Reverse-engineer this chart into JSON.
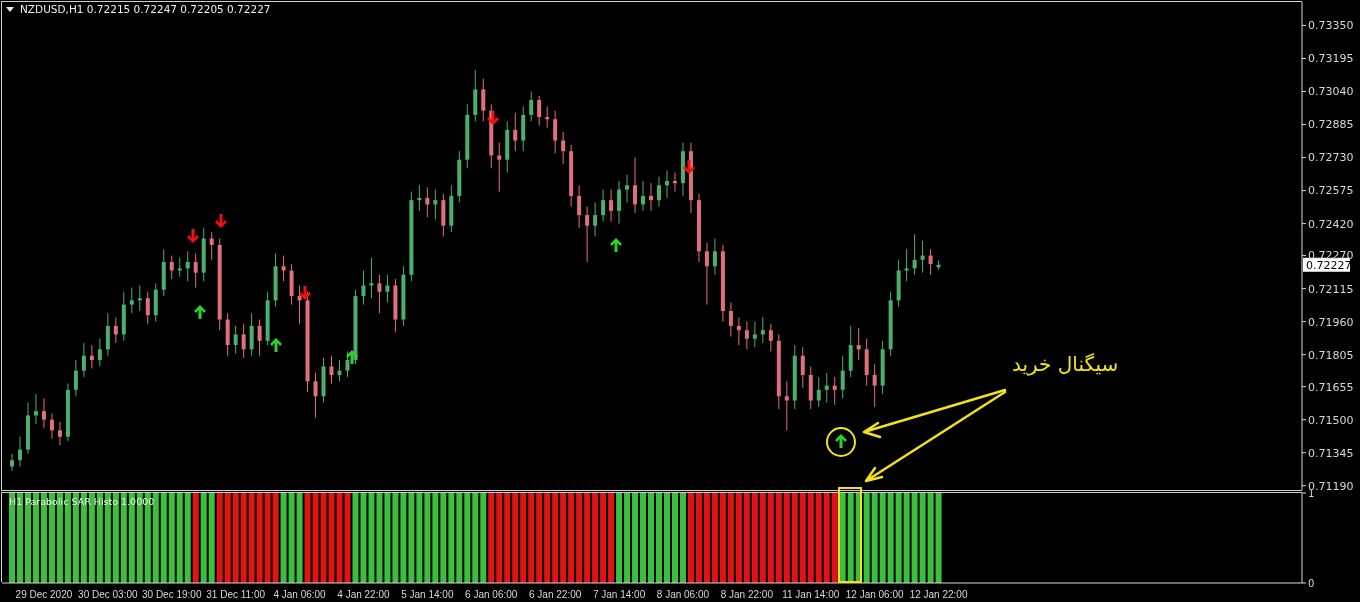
{
  "chart_data": [
    {
      "type": "candlestick",
      "title": "NZDUSD,H1 0.72215 0.72247 0.72205 0.72227",
      "categories": [
        null,
        null,
        null,
        null,
        null,
        null,
        null,
        null,
        null,
        null,
        null,
        null,
        null,
        null,
        null,
        null,
        null,
        null,
        null,
        null,
        null,
        null,
        null,
        null,
        null,
        null,
        null,
        null,
        null,
        null,
        null,
        null,
        null,
        null,
        null,
        null,
        null,
        null,
        null,
        null,
        null,
        null,
        null,
        null,
        null,
        null,
        null,
        null,
        null,
        null,
        null,
        null,
        null,
        null,
        null,
        null,
        null,
        null,
        null,
        null,
        null,
        null,
        null,
        null,
        null,
        null,
        null,
        null,
        null,
        null,
        null,
        null,
        null,
        null,
        null,
        null,
        null,
        null,
        null,
        null,
        null,
        null,
        null,
        null,
        null,
        null,
        null,
        null,
        null,
        null,
        null,
        null,
        null,
        null,
        null,
        null,
        null,
        null,
        null,
        null,
        null,
        null,
        null,
        null,
        null,
        null,
        null,
        null,
        null,
        null,
        null,
        null,
        null,
        null,
        null,
        null,
        null,
        null,
        null,
        null,
        null,
        null,
        null,
        null,
        null,
        null,
        null,
        null,
        null,
        null,
        null,
        null,
        null,
        null,
        null,
        null,
        null,
        null,
        null,
        null,
        null,
        null,
        null,
        null,
        null,
        null,
        null,
        null,
        null,
        null,
        null,
        null,
        null,
        null,
        null,
        null,
        null,
        null,
        null,
        null,
        null,
        null
      ],
      "ohlc": [
        [
          0.7128,
          0.7134,
          0.7126,
          0.7131
        ],
        [
          0.7131,
          0.7142,
          0.7128,
          0.7136
        ],
        [
          0.7136,
          0.7158,
          0.7134,
          0.7152
        ],
        [
          0.7152,
          0.7162,
          0.7148,
          0.7154
        ],
        [
          0.7154,
          0.716,
          0.7146,
          0.715
        ],
        [
          0.715,
          0.7153,
          0.7141,
          0.7145
        ],
        [
          0.7145,
          0.7149,
          0.7138,
          0.7142
        ],
        [
          0.7142,
          0.7167,
          0.714,
          0.7164
        ],
        [
          0.7164,
          0.7178,
          0.7161,
          0.7173
        ],
        [
          0.7173,
          0.7186,
          0.717,
          0.718
        ],
        [
          0.718,
          0.7185,
          0.7174,
          0.7178
        ],
        [
          0.7178,
          0.7188,
          0.7175,
          0.7183
        ],
        [
          0.7183,
          0.72,
          0.718,
          0.7194
        ],
        [
          0.7194,
          0.7198,
          0.7186,
          0.719
        ],
        [
          0.719,
          0.721,
          0.7187,
          0.7204
        ],
        [
          0.7204,
          0.7212,
          0.72,
          0.7206
        ],
        [
          0.7206,
          0.7213,
          0.7201,
          0.7207
        ],
        [
          0.7207,
          0.721,
          0.7195,
          0.7199
        ],
        [
          0.7199,
          0.7214,
          0.7196,
          0.7211
        ],
        [
          0.7211,
          0.723,
          0.7208,
          0.7224
        ],
        [
          0.7224,
          0.7227,
          0.7216,
          0.722
        ],
        [
          0.722,
          0.7226,
          0.7217,
          0.7221
        ],
        [
          0.7221,
          0.7229,
          0.7215,
          0.7224
        ],
        [
          0.7224,
          0.7228,
          0.7212,
          0.7219
        ],
        [
          0.7219,
          0.724,
          0.7215,
          0.7235
        ],
        [
          0.7235,
          0.7238,
          0.7225,
          0.7232
        ],
        [
          0.7232,
          0.7235,
          0.7192,
          0.7197
        ],
        [
          0.7197,
          0.72,
          0.718,
          0.7185
        ],
        [
          0.7185,
          0.7194,
          0.7181,
          0.719
        ],
        [
          0.719,
          0.7195,
          0.7179,
          0.7183
        ],
        [
          0.7183,
          0.72,
          0.718,
          0.7194
        ],
        [
          0.7194,
          0.7197,
          0.718,
          0.7187
        ],
        [
          0.7187,
          0.721,
          0.7185,
          0.7206
        ],
        [
          0.7206,
          0.7228,
          0.7203,
          0.7222
        ],
        [
          0.7222,
          0.7227,
          0.7215,
          0.722
        ],
        [
          0.722,
          0.7223,
          0.7204,
          0.7208
        ],
        [
          0.7208,
          0.7213,
          0.7195,
          0.7206
        ],
        [
          0.7206,
          0.721,
          0.7163,
          0.7168
        ],
        [
          0.7168,
          0.7172,
          0.7151,
          0.7161
        ],
        [
          0.7161,
          0.7179,
          0.7158,
          0.7175
        ],
        [
          0.7175,
          0.718,
          0.7167,
          0.7171
        ],
        [
          0.7171,
          0.7178,
          0.7168,
          0.7173
        ],
        [
          0.7173,
          0.7182,
          0.717,
          0.7178
        ],
        [
          0.7178,
          0.7211,
          0.7176,
          0.7208
        ],
        [
          0.7208,
          0.722,
          0.7204,
          0.7213
        ],
        [
          0.7213,
          0.7226,
          0.7207,
          0.7214
        ],
        [
          0.7214,
          0.7218,
          0.72,
          0.721
        ],
        [
          0.721,
          0.7218,
          0.7205,
          0.7213
        ],
        [
          0.7213,
          0.7216,
          0.7191,
          0.7197
        ],
        [
          0.7197,
          0.7222,
          0.7194,
          0.7218
        ],
        [
          0.7218,
          0.7257,
          0.7215,
          0.7253
        ],
        [
          0.7253,
          0.726,
          0.7248,
          0.7254
        ],
        [
          0.7254,
          0.7259,
          0.7245,
          0.7251
        ],
        [
          0.7251,
          0.7258,
          0.7244,
          0.7253
        ],
        [
          0.7253,
          0.7256,
          0.7236,
          0.7241
        ],
        [
          0.7241,
          0.726,
          0.7238,
          0.7255
        ],
        [
          0.7255,
          0.7276,
          0.7252,
          0.7272
        ],
        [
          0.7272,
          0.7298,
          0.7268,
          0.7293
        ],
        [
          0.7293,
          0.7314,
          0.729,
          0.7305
        ],
        [
          0.7305,
          0.731,
          0.729,
          0.7295
        ],
        [
          0.7295,
          0.7298,
          0.7268,
          0.7274
        ],
        [
          0.7274,
          0.728,
          0.7257,
          0.7272
        ],
        [
          0.7272,
          0.729,
          0.7266,
          0.7286
        ],
        [
          0.7286,
          0.7294,
          0.7276,
          0.7281
        ],
        [
          0.7281,
          0.7297,
          0.7276,
          0.7293
        ],
        [
          0.7293,
          0.7304,
          0.729,
          0.73
        ],
        [
          0.73,
          0.7302,
          0.7288,
          0.7292
        ],
        [
          0.7292,
          0.7297,
          0.7287,
          0.7291
        ],
        [
          0.7291,
          0.7295,
          0.7275,
          0.7281
        ],
        [
          0.7281,
          0.7285,
          0.727,
          0.7276
        ],
        [
          0.7276,
          0.7279,
          0.725,
          0.7255
        ],
        [
          0.7255,
          0.726,
          0.724,
          0.7246
        ],
        [
          0.7246,
          0.725,
          0.7224,
          0.7241
        ],
        [
          0.7241,
          0.7252,
          0.7236,
          0.7246
        ],
        [
          0.7246,
          0.7258,
          0.7243,
          0.7253
        ],
        [
          0.7253,
          0.7258,
          0.7243,
          0.7248
        ],
        [
          0.7248,
          0.7262,
          0.7242,
          0.7258
        ],
        [
          0.7258,
          0.7265,
          0.7252,
          0.726
        ],
        [
          0.726,
          0.7273,
          0.7247,
          0.7251
        ],
        [
          0.7251,
          0.7262,
          0.7248,
          0.7255
        ],
        [
          0.7255,
          0.7261,
          0.7248,
          0.7253
        ],
        [
          0.7253,
          0.7264,
          0.725,
          0.726
        ],
        [
          0.726,
          0.7267,
          0.7254,
          0.7262
        ],
        [
          0.7262,
          0.7266,
          0.7257,
          0.7261
        ],
        [
          0.7261,
          0.728,
          0.7255,
          0.7276
        ],
        [
          0.7276,
          0.728,
          0.7247,
          0.7253
        ],
        [
          0.7253,
          0.7256,
          0.7224,
          0.7229
        ],
        [
          0.7229,
          0.7233,
          0.7204,
          0.7222
        ],
        [
          0.7222,
          0.7235,
          0.7218,
          0.7229
        ],
        [
          0.7229,
          0.7232,
          0.7196,
          0.7201
        ],
        [
          0.7201,
          0.7205,
          0.7189,
          0.7194
        ],
        [
          0.7194,
          0.7198,
          0.7185,
          0.7192
        ],
        [
          0.7192,
          0.7196,
          0.7183,
          0.7188
        ],
        [
          0.7188,
          0.7196,
          0.7184,
          0.719
        ],
        [
          0.719,
          0.7198,
          0.7186,
          0.7192
        ],
        [
          0.7192,
          0.7195,
          0.7182,
          0.7187
        ],
        [
          0.7187,
          0.719,
          0.7155,
          0.7161
        ],
        [
          0.7161,
          0.7168,
          0.7145,
          0.7159
        ],
        [
          0.7159,
          0.7185,
          0.7155,
          0.718
        ],
        [
          0.718,
          0.7184,
          0.7165,
          0.7171
        ],
        [
          0.7171,
          0.7175,
          0.7155,
          0.7159
        ],
        [
          0.7159,
          0.717,
          0.7156,
          0.7164
        ],
        [
          0.7164,
          0.7172,
          0.7158,
          0.7166
        ],
        [
          0.7166,
          0.717,
          0.7157,
          0.7164
        ],
        [
          0.7164,
          0.718,
          0.716,
          0.7173
        ],
        [
          0.7173,
          0.7194,
          0.717,
          0.7185
        ],
        [
          0.7185,
          0.7193,
          0.7178,
          0.7183
        ],
        [
          0.7183,
          0.7188,
          0.7166,
          0.7171
        ],
        [
          0.7171,
          0.7176,
          0.7156,
          0.7166
        ],
        [
          0.7166,
          0.7187,
          0.7162,
          0.7183
        ],
        [
          0.7183,
          0.721,
          0.718,
          0.7206
        ],
        [
          0.7206,
          0.7225,
          0.7203,
          0.722
        ],
        [
          0.722,
          0.723,
          0.7215,
          0.7221
        ],
        [
          0.7221,
          0.7237,
          0.7218,
          0.7225
        ],
        [
          0.7225,
          0.7234,
          0.7219,
          0.7227
        ],
        [
          0.7227,
          0.723,
          0.7218,
          0.7223
        ],
        [
          0.72215,
          0.72247,
          0.72205,
          0.72227
        ],
        null,
        null,
        null,
        null,
        null,
        null,
        null,
        null,
        null,
        null,
        null,
        null,
        null,
        null,
        null,
        null,
        null,
        null,
        null,
        null,
        null,
        null,
        null,
        null,
        null,
        null,
        null,
        null,
        null,
        null,
        null,
        null,
        null,
        null,
        null,
        null,
        null,
        null,
        null,
        null,
        null,
        null,
        null,
        null,
        null
      ],
      "colors": [
        "#4caf6e",
        "#4caf6e",
        "#4caf6e",
        "#4caf6e",
        "#e0707a",
        "#e0707a",
        "#e0707a",
        "#4caf6e",
        "#4caf6e",
        "#4caf6e",
        "#e0707a",
        "#4caf6e",
        "#4caf6e",
        "#e0707a",
        "#4caf6e",
        "#4caf6e",
        "#4caf6e",
        "#e0707a",
        "#4caf6e",
        "#4caf6e",
        "#e0707a",
        "#4caf6e",
        "#4caf6e",
        "#e0707a",
        "#4caf6e",
        "#e0707a",
        "#e0707a",
        "#e0707a",
        "#4caf6e",
        "#e0707a",
        "#4caf6e",
        "#e0707a",
        "#4caf6e",
        "#4caf6e",
        "#e0707a",
        "#e0707a",
        "#e0707a",
        "#e0707a",
        "#e0707a",
        "#4caf6e",
        "#e0707a",
        "#4caf6e",
        "#4caf6e",
        "#4caf6e",
        "#4caf6e",
        "#4caf6e",
        "#e0707a",
        "#4caf6e",
        "#e0707a",
        "#4caf6e",
        "#4caf6e",
        "#4caf6e",
        "#e0707a",
        "#4caf6e",
        "#e0707a",
        "#4caf6e",
        "#4caf6e",
        "#4caf6e",
        "#4caf6e",
        "#e0707a",
        "#e0707a",
        "#e0707a",
        "#4caf6e",
        "#e0707a",
        "#4caf6e",
        "#4caf6e",
        "#e0707a",
        "#e0707a",
        "#e0707a",
        "#e0707a",
        "#e0707a",
        "#e0707a",
        "#e0707a",
        "#4caf6e",
        "#4caf6e",
        "#e0707a",
        "#4caf6e",
        "#4caf6e",
        "#e0707a",
        "#4caf6e",
        "#e0707a",
        "#4caf6e",
        "#4caf6e",
        "#e0707a",
        "#4caf6e",
        "#e0707a",
        "#e0707a",
        "#e0707a",
        "#4caf6e",
        "#e0707a",
        "#e0707a",
        "#e0707a",
        "#e0707a",
        "#4caf6e",
        "#4caf6e",
        "#e0707a",
        "#e0707a",
        "#e0707a",
        "#4caf6e",
        "#e0707a",
        "#e0707a",
        "#4caf6e",
        "#4caf6e",
        "#e0707a",
        "#4caf6e",
        "#4caf6e",
        "#e0707a",
        "#e0707a",
        "#e0707a",
        "#4caf6e",
        "#4caf6e",
        "#4caf6e",
        "#4caf6e",
        "#4caf6e",
        "#4caf6e",
        "#e0707a",
        "#4caf6e",
        null,
        null,
        null,
        null,
        null,
        null,
        null,
        null,
        null,
        null,
        null,
        null,
        null,
        null,
        null,
        null,
        null,
        null,
        null,
        null,
        null,
        null,
        null,
        null,
        null,
        null,
        null,
        null,
        null,
        null,
        null,
        null,
        null,
        null,
        null,
        null,
        null,
        null,
        null,
        null,
        null,
        null,
        null,
        null,
        null
      ],
      "ylim": [
        0.7117,
        0.7346
      ],
      "yticks": [
        {
          "value": 0.7335,
          "label": "0.73350"
        },
        {
          "value": 0.73195,
          "label": "0.73195"
        },
        {
          "value": 0.7304,
          "label": "0.73040"
        },
        {
          "value": 0.72885,
          "label": "0.72885"
        },
        {
          "value": 0.7273,
          "label": "0.72730"
        },
        {
          "value": 0.72575,
          "label": "0.72575"
        },
        {
          "value": 0.7242,
          "label": "0.72420"
        },
        {
          "value": 0.7227,
          "label": "0.72270"
        },
        {
          "value": 0.72115,
          "label": "0.72115"
        },
        {
          "value": 0.7196,
          "label": "0.71960"
        },
        {
          "value": 0.71805,
          "label": "0.71805"
        },
        {
          "value": 0.71655,
          "label": "0.71655"
        },
        {
          "value": 0.715,
          "label": "0.71500"
        },
        {
          "value": 0.71345,
          "label": "0.71345"
        },
        {
          "value": 0.7119,
          "label": "0.71190"
        }
      ],
      "tick_labels": "y",
      "annotations": [
        "سیگنال خرید",
        "0.72227"
      ]
    },
    {
      "type": "bar",
      "title": "H1 Parabolic SAR Histo 1.0000",
      "categories": [
        null,
        null,
        null,
        null,
        "29 Dec 2020",
        null,
        null,
        null,
        null,
        null,
        null,
        null,
        "30 Dec 03:00",
        null,
        null,
        null,
        null,
        null,
        null,
        null,
        "30 Dec 19:00",
        null,
        null,
        null,
        null,
        null,
        null,
        null,
        "31 Dec 11:00",
        null,
        null,
        null,
        null,
        null,
        null,
        null,
        "4 Jan 06:00",
        null,
        null,
        null,
        null,
        null,
        null,
        null,
        "4 Jan 22:00",
        null,
        null,
        null,
        null,
        null,
        null,
        null,
        "5 Jan 14:00",
        null,
        null,
        null,
        null,
        null,
        null,
        null,
        "6 Jan 06:00",
        null,
        null,
        null,
        null,
        null,
        null,
        null,
        "6 Jan 22:00",
        null,
        null,
        null,
        null,
        null,
        null,
        null,
        "7 Jan 14:00",
        null,
        null,
        null,
        null,
        null,
        null,
        null,
        "8 Jan 06:00",
        null,
        null,
        null,
        null,
        null,
        null,
        null,
        "8 Jan 22:00",
        null,
        null,
        null,
        null,
        null,
        null,
        null,
        "11 Jan 14:00",
        null,
        null,
        null,
        null,
        null,
        null,
        null,
        "12 Jan 06:00",
        null,
        null,
        null,
        null,
        null,
        null,
        null,
        "12 Jan 22:00",
        null,
        null,
        null,
        null,
        null,
        null,
        null,
        null,
        null,
        null,
        null,
        null,
        null,
        null,
        null,
        null,
        null,
        null,
        null,
        null,
        null,
        null,
        null,
        null,
        null,
        null,
        null,
        null,
        null,
        null,
        null,
        null,
        null,
        null,
        null,
        null,
        null,
        null,
        null,
        null,
        null,
        null,
        null,
        null,
        null
      ],
      "values": [
        1,
        1,
        1,
        1,
        1,
        1,
        1,
        1,
        1,
        1,
        1,
        1,
        1,
        1,
        1,
        1,
        1,
        1,
        1,
        1,
        1,
        1,
        1,
        1,
        1,
        1,
        1,
        1,
        1,
        1,
        1,
        1,
        1,
        1,
        1,
        1,
        1,
        1,
        1,
        1,
        1,
        1,
        1,
        1,
        1,
        1,
        1,
        1,
        1,
        1,
        1,
        1,
        1,
        1,
        1,
        1,
        1,
        1,
        1,
        1,
        1,
        1,
        1,
        1,
        1,
        1,
        1,
        1,
        1,
        1,
        1,
        1,
        1,
        1,
        1,
        1,
        1,
        1,
        1,
        1,
        1,
        1,
        1,
        1,
        1,
        1,
        1,
        1,
        1,
        1,
        1,
        1,
        1,
        1,
        1,
        1,
        1,
        1,
        1,
        1,
        1,
        1,
        1,
        1,
        1,
        1,
        1,
        1,
        1,
        1,
        1,
        1,
        1,
        1,
        1,
        1,
        1,
        null,
        null,
        null,
        null,
        null,
        null,
        null,
        null,
        null,
        null,
        null,
        null,
        null,
        null,
        null,
        null,
        null,
        null,
        null,
        null,
        null,
        null,
        null,
        null,
        null,
        null,
        null,
        null,
        null,
        null,
        null,
        null,
        null,
        null,
        null,
        null,
        null,
        null,
        null,
        null,
        null,
        null,
        null,
        null,
        null
      ],
      "colors": [
        "#3cbf3c",
        "#3cbf3c",
        "#3cbf3c",
        "#3cbf3c",
        "#3cbf3c",
        "#3cbf3c",
        "#3cbf3c",
        "#3cbf3c",
        "#3cbf3c",
        "#3cbf3c",
        "#3cbf3c",
        "#3cbf3c",
        "#3cbf3c",
        "#3cbf3c",
        "#3cbf3c",
        "#3cbf3c",
        "#3cbf3c",
        "#3cbf3c",
        "#3cbf3c",
        "#3cbf3c",
        "#3cbf3c",
        "#3cbf3c",
        "#3cbf3c",
        "#e01414",
        "#3cbf3c",
        "#3cbf3c",
        "#e01414",
        "#e01414",
        "#e01414",
        "#e01414",
        "#e01414",
        "#e01414",
        "#e01414",
        "#e01414",
        "#3cbf3c",
        "#3cbf3c",
        "#3cbf3c",
        "#e01414",
        "#e01414",
        "#e01414",
        "#e01414",
        "#e01414",
        "#e01414",
        "#3cbf3c",
        "#3cbf3c",
        "#3cbf3c",
        "#3cbf3c",
        "#3cbf3c",
        "#3cbf3c",
        "#3cbf3c",
        "#3cbf3c",
        "#3cbf3c",
        "#3cbf3c",
        "#3cbf3c",
        "#3cbf3c",
        "#3cbf3c",
        "#3cbf3c",
        "#3cbf3c",
        "#3cbf3c",
        "#3cbf3c",
        "#e01414",
        "#e01414",
        "#e01414",
        "#e01414",
        "#e01414",
        "#e01414",
        "#e01414",
        "#e01414",
        "#e01414",
        "#e01414",
        "#e01414",
        "#e01414",
        "#e01414",
        "#e01414",
        "#e01414",
        "#e01414",
        "#3cbf3c",
        "#3cbf3c",
        "#3cbf3c",
        "#3cbf3c",
        "#3cbf3c",
        "#3cbf3c",
        "#3cbf3c",
        "#3cbf3c",
        "#3cbf3c",
        "#e01414",
        "#e01414",
        "#e01414",
        "#e01414",
        "#e01414",
        "#e01414",
        "#e01414",
        "#e01414",
        "#e01414",
        "#e01414",
        "#e01414",
        "#e01414",
        "#e01414",
        "#e01414",
        "#e01414",
        "#e01414",
        "#e01414",
        "#e01414",
        "#e01414",
        "#3cbf3c",
        "#3cbf3c",
        "#3cbf3c",
        "#3cbf3c",
        "#3cbf3c",
        "#3cbf3c",
        "#3cbf3c",
        "#3cbf3c",
        "#3cbf3c",
        "#3cbf3c",
        "#3cbf3c",
        "#3cbf3c",
        "#3cbf3c",
        null,
        null,
        null,
        null,
        null,
        null,
        null,
        null,
        null,
        null,
        null,
        null,
        null,
        null,
        null,
        null,
        null,
        null,
        null,
        null,
        null,
        null,
        null,
        null,
        null,
        null,
        null,
        null,
        null,
        null,
        null,
        null,
        null,
        null,
        null,
        null,
        null,
        null,
        null,
        null,
        null,
        null,
        null,
        null,
        null
      ],
      "ylim": [
        0,
        1
      ],
      "yticks": [
        0,
        1
      ]
    }
  ]
}
